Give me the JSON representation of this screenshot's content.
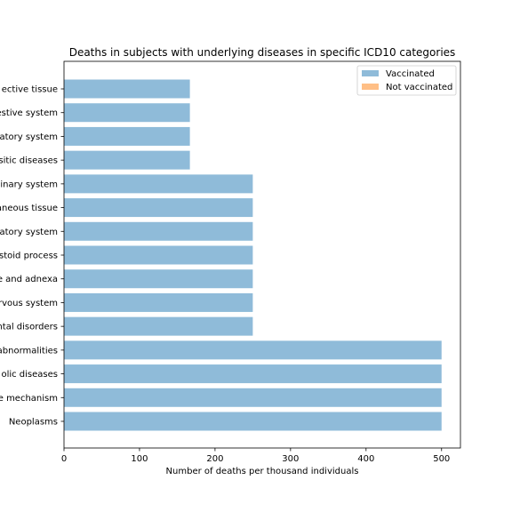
{
  "chart_data": {
    "type": "bar",
    "orientation": "horizontal",
    "title": "Deaths in subjects with underlying diseases in specific ICD10 categories",
    "xlabel": "Number of deaths per thousand individuals",
    "ylabel": "",
    "xlim": [
      0,
      525
    ],
    "xticks": [
      0,
      100,
      200,
      300,
      400,
      500
    ],
    "grid": false,
    "legend_position": "top-right",
    "categories": [
      "Neoplasms",
      "e mechanism",
      "olic diseases",
      "abnormalities",
      "ntal disorders",
      "rvous system",
      "e and adnexa",
      "stoid process",
      "atory system",
      "aneous tissue",
      "inary system",
      "sitic diseases",
      "atory system",
      "estive system",
      "ective tissue"
    ],
    "series": [
      {
        "name": "Vaccinated",
        "color": "#8fbbd9",
        "values": [
          500,
          500,
          500,
          500,
          250,
          250,
          250,
          250,
          250,
          250,
          250,
          166.7,
          166.7,
          166.7,
          166.7
        ]
      },
      {
        "name": "Not vaccinated",
        "color": "#ffbf86",
        "values": [
          0,
          0,
          0,
          0,
          0,
          0,
          0,
          0,
          0,
          0,
          0,
          0,
          0,
          0,
          0
        ]
      }
    ]
  }
}
